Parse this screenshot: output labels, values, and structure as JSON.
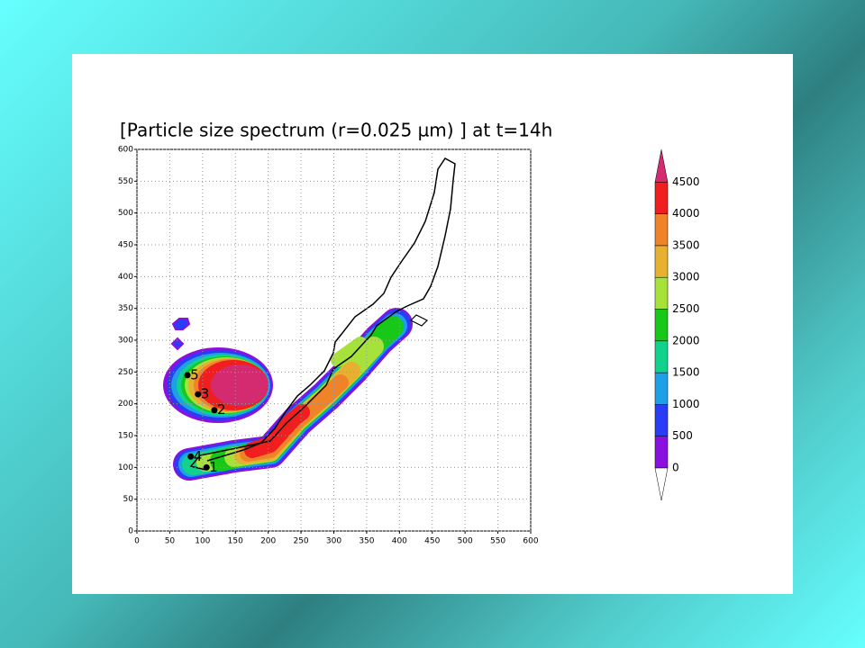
{
  "chart_data": {
    "type": "contour",
    "title": "[Particle size spectrum (r=0.025 µm) ]  at t=14h",
    "xlim": [
      0,
      600
    ],
    "ylim": [
      0,
      600
    ],
    "xticks": [
      0,
      50,
      100,
      150,
      200,
      250,
      300,
      350,
      400,
      450,
      500,
      550,
      600
    ],
    "yticks": [
      0,
      50,
      100,
      150,
      200,
      250,
      300,
      350,
      400,
      450,
      500,
      550,
      600
    ],
    "grid": true,
    "points": [
      {
        "label": "5",
        "x": 77,
        "y": 245
      },
      {
        "label": "3",
        "x": 93,
        "y": 215
      },
      {
        "label": "2",
        "x": 118,
        "y": 190
      },
      {
        "label": "4",
        "x": 82,
        "y": 117
      },
      {
        "label": "1",
        "x": 106,
        "y": 100
      }
    ],
    "colorbar": {
      "levels": [
        0,
        500,
        1000,
        1500,
        2000,
        2500,
        3000,
        3500,
        4000,
        4500
      ],
      "colors": [
        "#8a10e0",
        "#2a3cf5",
        "#1ea0e6",
        "#10d28c",
        "#18c818",
        "#a6e23a",
        "#e8b030",
        "#f08228",
        "#f01e1e"
      ],
      "under_color": "#ffffff",
      "over_color": "#d42a70"
    }
  }
}
